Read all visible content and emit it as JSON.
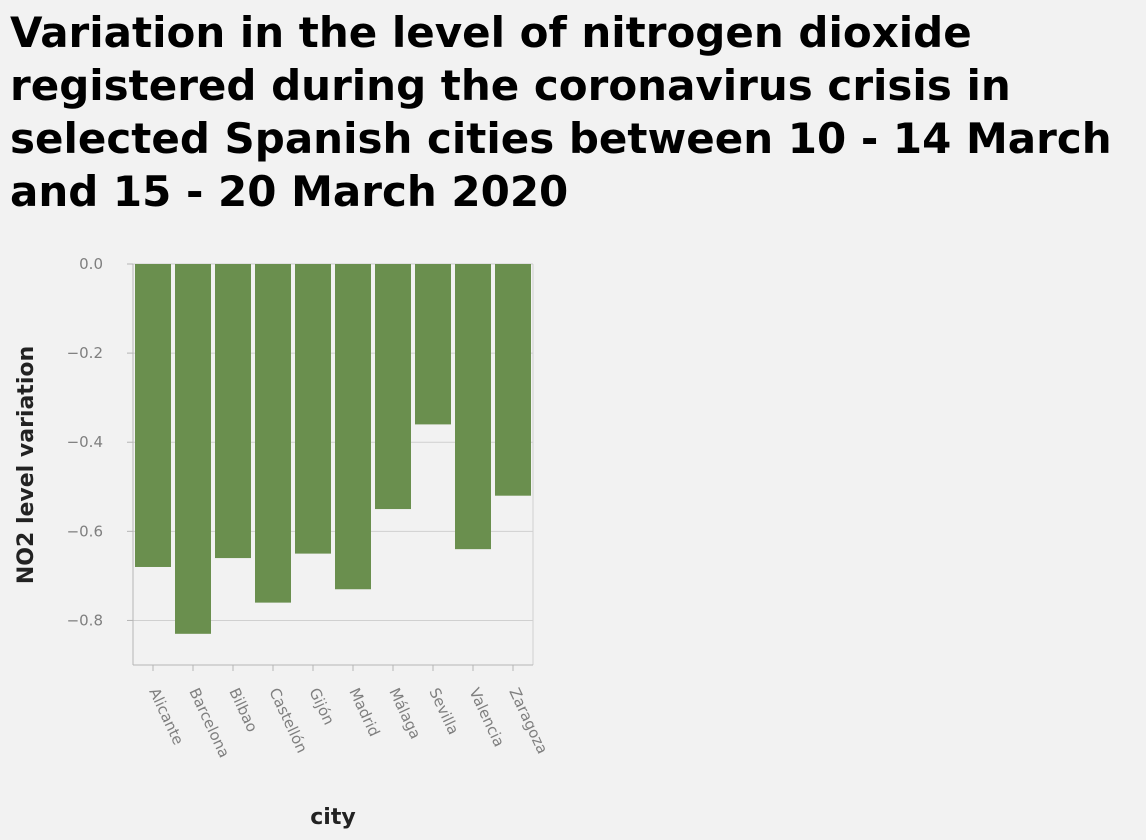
{
  "chart_data": {
    "type": "bar",
    "title": "Variation in the level of nitrogen dioxide registered during the coronavirus crisis in selected Spanish cities between 10 - 14 March and 15 - 20 March 2020",
    "xlabel": "city",
    "ylabel": "NO2 level variation",
    "categories": [
      "Alicante",
      "Barcelona",
      "Bilbao",
      "Castellón",
      "Gijón",
      "Madrid",
      "Málaga",
      "Sevilla",
      "Valencia",
      "Zaragoza"
    ],
    "values": [
      -0.68,
      -0.83,
      -0.66,
      -0.76,
      -0.65,
      -0.73,
      -0.55,
      -0.36,
      -0.64,
      -0.52
    ],
    "ylim": [
      -0.9,
      0.0
    ],
    "yticks": [
      0.0,
      -0.2,
      -0.4,
      -0.6,
      -0.8
    ],
    "ytick_labels": [
      "0.0",
      "−0.2",
      "−0.4",
      "−0.6",
      "−0.8"
    ],
    "grid": true,
    "legend": "none",
    "bar_color": "#6a8f4e"
  }
}
